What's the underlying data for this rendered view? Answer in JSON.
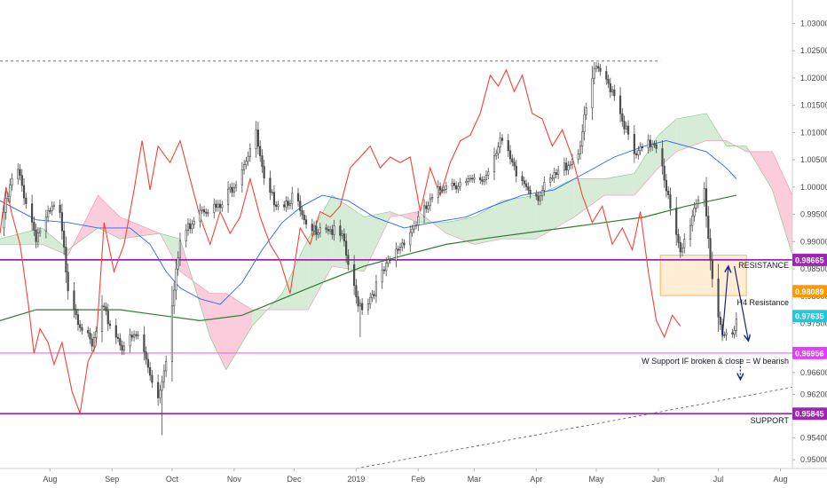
{
  "chart_data": {
    "type": "candlestick",
    "y_axis": {
      "range": [
        0.9484,
        1.0343
      ],
      "ticks": [
        "1.03000",
        "1.02500",
        "1.02000",
        "1.01500",
        "1.01000",
        "1.00500",
        "1.00000",
        "0.99500",
        "0.99000",
        "0.98500",
        "0.98000",
        "0.97500",
        "0.96600",
        "0.96200",
        "0.95800",
        "0.95400",
        "0.95000"
      ],
      "tick_values": [
        1.03,
        1.025,
        1.02,
        1.015,
        1.01,
        1.005,
        1.0,
        0.995,
        0.99,
        0.985,
        0.98,
        0.975,
        0.966,
        0.962,
        0.958,
        0.954,
        0.95
      ]
    },
    "x_axis": {
      "range": [
        "2018-07-07",
        "2019-08-07"
      ],
      "ticks": [
        {
          "label": "Aug",
          "date": "2018-08-01"
        },
        {
          "label": "Sep",
          "date": "2018-09-01"
        },
        {
          "label": "Oct",
          "date": "2018-10-01"
        },
        {
          "label": "Nov",
          "date": "2018-11-01"
        },
        {
          "label": "Dec",
          "date": "2018-12-01"
        },
        {
          "label": "2019",
          "date": "2019-01-01"
        },
        {
          "label": "Feb",
          "date": "2019-02-01"
        },
        {
          "label": "Mar",
          "date": "2019-03-01"
        },
        {
          "label": "Apr",
          "date": "2019-04-01"
        },
        {
          "label": "May",
          "date": "2019-05-01"
        },
        {
          "label": "Jun",
          "date": "2019-06-01"
        },
        {
          "label": "Jul",
          "date": "2019-07-01"
        },
        {
          "label": "Aug",
          "date": "2019-08-01"
        }
      ]
    },
    "price_path": [
      [
        "2018-07-07",
        0.9925
      ],
      [
        "2018-07-15",
        1.004
      ],
      [
        "2018-07-25",
        0.991
      ],
      [
        "2018-08-05",
        0.9975
      ],
      [
        "2018-08-10",
        0.982
      ],
      [
        "2018-08-15",
        0.976
      ],
      [
        "2018-08-22",
        0.9705
      ],
      [
        "2018-08-27",
        0.9775
      ],
      [
        "2018-09-06",
        0.971
      ],
      [
        "2018-09-14",
        0.9728
      ],
      [
        "2018-09-24",
        0.9615
      ],
      [
        "2018-09-28",
        0.969
      ],
      [
        "2018-10-05",
        0.99
      ],
      [
        "2018-10-15",
        0.9965
      ],
      [
        "2018-10-25",
        0.996
      ],
      [
        "2018-11-02",
        1.0015
      ],
      [
        "2018-11-12",
        1.0095
      ],
      [
        "2018-11-17",
        0.9985
      ],
      [
        "2018-11-25",
        0.997
      ],
      [
        "2018-12-01",
        0.9985
      ],
      [
        "2018-12-08",
        0.991
      ],
      [
        "2018-12-15",
        0.9935
      ],
      [
        "2018-12-25",
        0.9905
      ],
      [
        "2019-01-01",
        0.9795
      ],
      [
        "2019-01-05",
        0.978
      ],
      [
        "2019-01-15",
        0.9845
      ],
      [
        "2019-01-25",
        0.9905
      ],
      [
        "2019-02-05",
        0.996
      ],
      [
        "2019-02-15",
        1.001
      ],
      [
        "2019-02-25",
        1.0005
      ],
      [
        "2019-03-06",
        1.0015
      ],
      [
        "2019-03-14",
        1.009
      ],
      [
        "2019-03-22",
        1.002
      ],
      [
        "2019-04-02",
        0.9985
      ],
      [
        "2019-04-12",
        1.0025
      ],
      [
        "2019-04-22",
        1.0065
      ],
      [
        "2019-04-30",
        1.0215
      ],
      [
        "2019-05-06",
        1.0195
      ],
      [
        "2019-05-10",
        1.0175
      ],
      [
        "2019-05-20",
        1.0055
      ],
      [
        "2019-05-30",
        1.0085
      ],
      [
        "2019-06-02",
        1.0065
      ],
      [
        "2019-06-08",
        0.9935
      ],
      [
        "2019-06-12",
        0.9875
      ],
      [
        "2019-06-20",
        0.9975
      ],
      [
        "2019-06-24",
        1.0
      ],
      [
        "2019-06-29",
        0.9775
      ],
      [
        "2019-07-03",
        0.9725
      ],
      [
        "2019-07-08",
        0.9735
      ],
      [
        "2019-07-10",
        0.9763
      ]
    ],
    "price_low_spikes": [
      [
        "2018-09-26",
        0.9545
      ],
      [
        "2019-01-03",
        0.9725
      ],
      [
        "2019-07-05",
        0.9718
      ]
    ],
    "ichimoku_cloud": [
      {
        "date": "2018-07-07",
        "a": 0.9905,
        "b": 0.9895
      },
      {
        "date": "2018-07-28",
        "a": 0.9925,
        "b": 0.9895
      },
      {
        "date": "2018-08-10",
        "a": 0.9885,
        "b": 0.9875
      },
      {
        "date": "2018-08-25",
        "a": 0.9925,
        "b": 0.9985
      },
      {
        "date": "2018-09-05",
        "a": 0.9905,
        "b": 0.9945
      },
      {
        "date": "2018-09-25",
        "a": 0.9915,
        "b": 0.9915
      },
      {
        "date": "2018-10-05",
        "a": 0.9905,
        "b": 0.9845
      },
      {
        "date": "2018-10-20",
        "a": 0.9725,
        "b": 0.9805
      },
      {
        "date": "2018-10-28",
        "a": 0.9665,
        "b": 0.9805
      },
      {
        "date": "2018-11-10",
        "a": 0.9745,
        "b": 0.9775
      },
      {
        "date": "2018-11-25",
        "a": 0.9805,
        "b": 0.9775
      },
      {
        "date": "2018-12-08",
        "a": 0.9905,
        "b": 0.9775
      },
      {
        "date": "2018-12-20",
        "a": 0.9985,
        "b": 0.9855
      },
      {
        "date": "2019-01-05",
        "a": 0.9945,
        "b": 0.9845
      },
      {
        "date": "2019-01-18",
        "a": 0.9955,
        "b": 0.9945
      },
      {
        "date": "2019-02-01",
        "a": 0.9935,
        "b": 0.9955
      },
      {
        "date": "2019-02-15",
        "a": 0.9935,
        "b": 0.9915
      },
      {
        "date": "2019-03-01",
        "a": 0.9945,
        "b": 0.9895
      },
      {
        "date": "2019-03-15",
        "a": 0.9975,
        "b": 0.9905
      },
      {
        "date": "2019-04-01",
        "a": 0.9985,
        "b": 0.9905
      },
      {
        "date": "2019-04-20",
        "a": 1.0015,
        "b": 0.9945
      },
      {
        "date": "2019-05-05",
        "a": 1.0015,
        "b": 0.9985
      },
      {
        "date": "2019-05-20",
        "a": 1.0025,
        "b": 0.9985
      },
      {
        "date": "2019-06-01",
        "a": 1.0095,
        "b": 1.0035
      },
      {
        "date": "2019-06-10",
        "a": 1.0125,
        "b": 1.0065
      },
      {
        "date": "2019-06-25",
        "a": 1.0135,
        "b": 1.0085
      },
      {
        "date": "2019-07-05",
        "a": 1.0075,
        "b": 1.0085
      },
      {
        "date": "2019-07-15",
        "a": 1.0075,
        "b": 1.0065
      },
      {
        "date": "2019-07-28",
        "a": 0.9995,
        "b": 1.0065
      },
      {
        "date": "2019-08-07",
        "a": 0.9875,
        "b": 0.9985
      }
    ],
    "lagging_span": [
      [
        "2018-07-07",
        0.9915
      ],
      [
        "2018-07-10",
        1.0
      ],
      [
        "2018-07-13",
        0.995
      ],
      [
        "2018-07-17",
        0.9895
      ],
      [
        "2018-07-21",
        0.979
      ],
      [
        "2018-07-24",
        0.9695
      ],
      [
        "2018-07-27",
        0.974
      ],
      [
        "2018-07-31",
        0.9715
      ],
      [
        "2018-08-03",
        0.9675
      ],
      [
        "2018-08-07",
        0.9715
      ],
      [
        "2018-08-12",
        0.9625
      ],
      [
        "2018-08-16",
        0.9585
      ],
      [
        "2018-08-20",
        0.968
      ],
      [
        "2018-08-24",
        0.971
      ],
      [
        "2018-08-28",
        0.9935
      ],
      [
        "2018-09-02",
        0.9845
      ],
      [
        "2018-09-07",
        0.9895
      ],
      [
        "2018-09-12",
        0.9995
      ],
      [
        "2018-09-16",
        1.0085
      ],
      [
        "2018-09-20",
        0.9995
      ],
      [
        "2018-09-24",
        1.0075
      ],
      [
        "2018-09-30",
        1.0045
      ],
      [
        "2018-10-05",
        1.0085
      ],
      [
        "2018-10-10",
        1.0015
      ],
      [
        "2018-10-15",
        0.9945
      ],
      [
        "2018-10-20",
        0.9895
      ],
      [
        "2018-10-25",
        0.9955
      ],
      [
        "2018-10-30",
        0.9915
      ],
      [
        "2018-11-04",
        0.9945
      ],
      [
        "2018-11-09",
        1.0015
      ],
      [
        "2018-11-14",
        0.9945
      ],
      [
        "2018-11-19",
        0.9895
      ],
      [
        "2018-11-24",
        0.9865
      ],
      [
        "2018-11-29",
        0.9805
      ],
      [
        "2018-12-04",
        0.9925
      ],
      [
        "2018-12-09",
        0.9895
      ],
      [
        "2018-12-14",
        0.9955
      ],
      [
        "2018-12-19",
        0.9945
      ],
      [
        "2018-12-24",
        0.9965
      ],
      [
        "2018-12-29",
        1.0035
      ],
      [
        "2019-01-03",
        1.0055
      ],
      [
        "2019-01-08",
        1.0075
      ],
      [
        "2019-01-13",
        1.0035
      ],
      [
        "2019-01-18",
        1.0055
      ],
      [
        "2019-01-23",
        1.0045
      ],
      [
        "2019-01-28",
        1.0055
      ],
      [
        "2019-02-02",
        0.9955
      ],
      [
        "2019-02-07",
        1.0035
      ],
      [
        "2019-02-12",
        0.9985
      ],
      [
        "2019-02-17",
        1.0045
      ],
      [
        "2019-02-22",
        1.0085
      ],
      [
        "2019-02-27",
        1.0095
      ],
      [
        "2019-03-04",
        1.0135
      ],
      [
        "2019-03-09",
        1.0205
      ],
      [
        "2019-03-13",
        1.0185
      ],
      [
        "2019-03-17",
        1.0215
      ],
      [
        "2019-03-21",
        1.0175
      ],
      [
        "2019-03-25",
        1.0205
      ],
      [
        "2019-03-30",
        1.0135
      ],
      [
        "2019-04-04",
        1.0125
      ],
      [
        "2019-04-09",
        1.0075
      ],
      [
        "2019-04-14",
        1.0105
      ],
      [
        "2019-04-19",
        1.0055
      ],
      [
        "2019-04-24",
        0.9985
      ],
      [
        "2019-04-29",
        0.9935
      ],
      [
        "2019-05-04",
        0.9965
      ],
      [
        "2019-05-09",
        0.9895
      ],
      [
        "2019-05-14",
        0.9925
      ],
      [
        "2019-05-19",
        0.9885
      ],
      [
        "2019-05-23",
        0.9955
      ],
      [
        "2019-05-27",
        0.9845
      ],
      [
        "2019-05-31",
        0.9755
      ],
      [
        "2019-06-04",
        0.9725
      ],
      [
        "2019-06-08",
        0.9765
      ],
      [
        "2019-06-12",
        0.9745
      ]
    ],
    "moving_average_fast": [
      [
        "2018-07-07",
        0.9975
      ],
      [
        "2018-07-25",
        0.994
      ],
      [
        "2018-08-10",
        0.9935
      ],
      [
        "2018-08-25",
        0.9925
      ],
      [
        "2018-09-10",
        0.9925
      ],
      [
        "2018-09-20",
        0.9895
      ],
      [
        "2018-09-28",
        0.9845
      ],
      [
        "2018-10-05",
        0.9815
      ],
      [
        "2018-10-15",
        0.9795
      ],
      [
        "2018-10-25",
        0.9785
      ],
      [
        "2018-11-05",
        0.9825
      ],
      [
        "2018-11-15",
        0.9885
      ],
      [
        "2018-11-25",
        0.9935
      ],
      [
        "2018-12-05",
        0.9965
      ],
      [
        "2018-12-15",
        0.9985
      ],
      [
        "2018-12-28",
        0.9975
      ],
      [
        "2019-01-10",
        0.9945
      ],
      [
        "2019-01-25",
        0.9925
      ],
      [
        "2019-02-08",
        0.9935
      ],
      [
        "2019-02-25",
        0.9945
      ],
      [
        "2019-03-10",
        0.9965
      ],
      [
        "2019-03-25",
        0.9985
      ],
      [
        "2019-04-10",
        0.9995
      ],
      [
        "2019-04-25",
        1.0025
      ],
      [
        "2019-05-10",
        1.0055
      ],
      [
        "2019-05-25",
        1.0075
      ],
      [
        "2019-06-05",
        1.0085
      ],
      [
        "2019-06-15",
        1.0075
      ],
      [
        "2019-06-25",
        1.0065
      ],
      [
        "2019-07-05",
        1.0035
      ],
      [
        "2019-07-10",
        1.0015
      ]
    ],
    "moving_average_slow": [
      [
        "2018-07-07",
        0.9755
      ],
      [
        "2018-07-25",
        0.9775
      ],
      [
        "2018-08-15",
        0.9775
      ],
      [
        "2018-09-05",
        0.9775
      ],
      [
        "2018-09-25",
        0.9765
      ],
      [
        "2018-10-15",
        0.9755
      ],
      [
        "2018-11-05",
        0.9765
      ],
      [
        "2018-11-25",
        0.9795
      ],
      [
        "2018-12-15",
        0.9825
      ],
      [
        "2019-01-05",
        0.9855
      ],
      [
        "2019-01-25",
        0.9875
      ],
      [
        "2019-02-15",
        0.9895
      ],
      [
        "2019-03-05",
        0.9905
      ],
      [
        "2019-03-25",
        0.9915
      ],
      [
        "2019-04-15",
        0.9925
      ],
      [
        "2019-05-05",
        0.9935
      ],
      [
        "2019-05-25",
        0.9945
      ],
      [
        "2019-06-15",
        0.9965
      ],
      [
        "2019-07-10",
        0.9985
      ]
    ],
    "horizontal_levels": [
      {
        "name": "resistance",
        "price": 0.98665,
        "label": "RESISTANCE",
        "tag": "0.98665",
        "color": "#9c27b0",
        "tag_color": "#9c27b0"
      },
      {
        "name": "w-support",
        "price": 0.96956,
        "label": "W Support IF broken & close = W bearish",
        "tag": "0.96956",
        "color": "#ee66ee",
        "tag_color": "#e040fb"
      },
      {
        "name": "support",
        "price": 0.95845,
        "label": "SUPPORT",
        "tag": "0.95845",
        "color": "#9c27b0",
        "tag_color": "#9c27b0"
      }
    ],
    "h4_resistance_zone": {
      "from": "2019-06-02",
      "to": "2019-07-15",
      "top": 0.9875,
      "bottom": 0.9801,
      "label": "H4 Resistance",
      "tag": "0.98089",
      "tag_color": "#ff9800"
    },
    "top_dashed_line": {
      "price": 1.0231,
      "from": "2018-07-07",
      "to": "2019-06-02"
    },
    "trend_line": {
      "from": [
        "2019-01-01",
        0.9484
      ],
      "to": [
        "2019-08-07",
        0.9633
      ]
    },
    "current_price": {
      "value": 0.97635,
      "tag": "0.97635",
      "color": "#26c6da"
    },
    "arrows": [
      {
        "from": [
          "2019-07-03",
          0.9725
        ],
        "to": [
          "2019-07-06",
          0.9855
        ]
      },
      {
        "from": [
          "2019-07-09",
          0.9855
        ],
        "to": [
          "2019-07-16",
          0.9718
        ]
      },
      {
        "from": [
          "2019-07-12",
          0.9685
        ],
        "to": [
          "2019-07-12",
          0.9647
        ]
      }
    ],
    "colors": {
      "candles": "#4a4a4a",
      "lagging_span": "#f44336",
      "ma_fast": "#2962ff",
      "ma_slow": "#2e7d32",
      "cloud_bull": "#c8e6c9",
      "cloud_bear": "#f8bbd0",
      "arrows": "#1a237e",
      "zone": "#ffe0b2"
    }
  }
}
